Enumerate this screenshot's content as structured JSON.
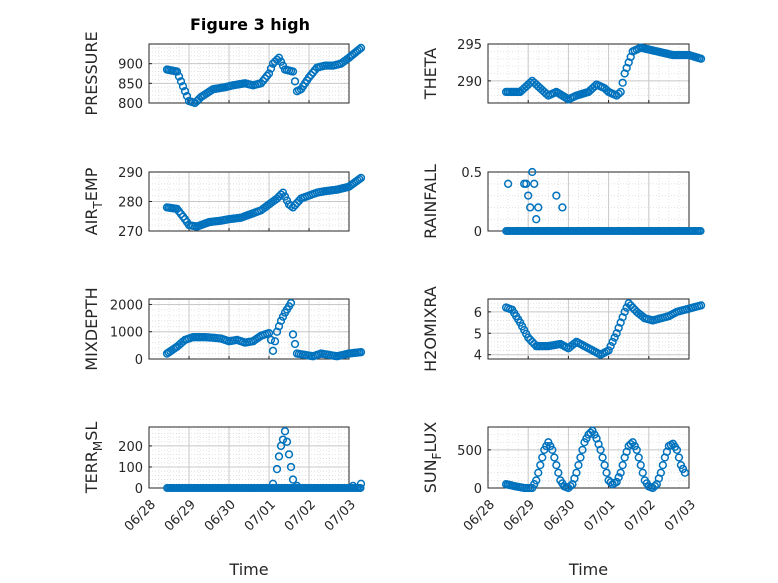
{
  "figure": {
    "title": "Figure 3 high"
  },
  "colors": {
    "marker": "#0072BD",
    "axis": "#262626",
    "grid": "#dcdcdc",
    "background": "#ffffff"
  },
  "chart_data": [
    {
      "type": "scatter",
      "id": "pressure",
      "ylabel": "PRESSURE",
      "ylabel_sub": "",
      "ylim": [
        800,
        950
      ],
      "yticks": [
        800,
        850,
        900
      ],
      "xticks": [
        "06/28",
        "06/29",
        "06/30",
        "07/01",
        "07/02",
        "07/03"
      ],
      "show_xticks": false,
      "xlabel": "",
      "x_start": 0.45,
      "x_end": 5.3,
      "points": [
        [
          0.45,
          885
        ],
        [
          0.7,
          880
        ],
        [
          0.9,
          830
        ],
        [
          1.0,
          805
        ],
        [
          1.15,
          800
        ],
        [
          1.3,
          815
        ],
        [
          1.6,
          835
        ],
        [
          1.9,
          840
        ],
        [
          2.1,
          845
        ],
        [
          2.4,
          850
        ],
        [
          2.6,
          845
        ],
        [
          2.8,
          850
        ],
        [
          3.0,
          875
        ],
        [
          3.1,
          900
        ],
        [
          3.25,
          915
        ],
        [
          3.4,
          885
        ],
        [
          3.6,
          880
        ],
        [
          3.7,
          830
        ],
        [
          3.8,
          835
        ],
        [
          4.0,
          865
        ],
        [
          4.2,
          890
        ],
        [
          4.4,
          895
        ],
        [
          4.6,
          895
        ],
        [
          4.8,
          900
        ],
        [
          5.0,
          915
        ],
        [
          5.3,
          940
        ]
      ]
    },
    {
      "type": "scatter",
      "id": "theta",
      "ylabel": "THETA",
      "ylabel_sub": "",
      "ylim": [
        287,
        295
      ],
      "yticks": [
        290,
        295
      ],
      "xticks": [
        "06/28",
        "06/29",
        "06/30",
        "07/01",
        "07/02",
        "07/03"
      ],
      "show_xticks": false,
      "xlabel": "",
      "x_start": 0.45,
      "x_end": 5.3,
      "points": [
        [
          0.45,
          288.5
        ],
        [
          0.8,
          288.5
        ],
        [
          1.0,
          289.5
        ],
        [
          1.1,
          290.0
        ],
        [
          1.3,
          289.0
        ],
        [
          1.5,
          288.0
        ],
        [
          1.7,
          288.5
        ],
        [
          2.0,
          287.5
        ],
        [
          2.2,
          288.0
        ],
        [
          2.5,
          288.5
        ],
        [
          2.7,
          289.5
        ],
        [
          2.9,
          289.0
        ],
        [
          3.0,
          288.5
        ],
        [
          3.2,
          288.0
        ],
        [
          3.3,
          288.5
        ],
        [
          3.4,
          291.0
        ],
        [
          3.6,
          294.0
        ],
        [
          3.8,
          294.5
        ],
        [
          4.2,
          294.0
        ],
        [
          4.6,
          293.5
        ],
        [
          5.0,
          293.5
        ],
        [
          5.3,
          293.0
        ]
      ]
    },
    {
      "type": "scatter",
      "id": "air_temp",
      "ylabel": "AIR",
      "ylabel_sub": "T",
      "ylabel_rest": "EMP",
      "ylim": [
        270,
        290
      ],
      "yticks": [
        270,
        280,
        290
      ],
      "xticks": [
        "06/28",
        "06/29",
        "06/30",
        "07/01",
        "07/02",
        "07/03"
      ],
      "show_xticks": false,
      "xlabel": "",
      "x_start": 0.45,
      "x_end": 5.3,
      "points": [
        [
          0.45,
          278
        ],
        [
          0.7,
          277.5
        ],
        [
          0.9,
          274
        ],
        [
          1.0,
          272
        ],
        [
          1.2,
          271.5
        ],
        [
          1.5,
          273
        ],
        [
          1.8,
          273.5
        ],
        [
          2.0,
          274
        ],
        [
          2.3,
          274.5
        ],
        [
          2.6,
          276
        ],
        [
          2.8,
          277
        ],
        [
          3.0,
          279
        ],
        [
          3.2,
          281
        ],
        [
          3.35,
          283
        ],
        [
          3.5,
          279
        ],
        [
          3.6,
          278
        ],
        [
          3.8,
          281
        ],
        [
          4.0,
          282
        ],
        [
          4.2,
          283
        ],
        [
          4.4,
          283.5
        ],
        [
          4.7,
          284
        ],
        [
          5.0,
          285
        ],
        [
          5.3,
          288
        ]
      ]
    },
    {
      "type": "scatter",
      "id": "rainfall",
      "ylabel": "RAINFALL",
      "ylabel_sub": "",
      "ylim": [
        0,
        0.5
      ],
      "yticks": [
        0,
        0.5
      ],
      "xticks": [
        "06/28",
        "06/29",
        "06/30",
        "07/01",
        "07/02",
        "07/03"
      ],
      "show_xticks": false,
      "xlabel": "",
      "x_start": 0.45,
      "x_end": 5.3,
      "baseline_value": 0,
      "points": [
        [
          0.5,
          0.4
        ],
        [
          0.9,
          0.4
        ],
        [
          0.95,
          0.4
        ],
        [
          1.0,
          0.3
        ],
        [
          1.05,
          0.2
        ],
        [
          1.1,
          0.5
        ],
        [
          1.15,
          0.4
        ],
        [
          1.2,
          0.1
        ],
        [
          1.25,
          0.2
        ],
        [
          1.7,
          0.3
        ],
        [
          1.85,
          0.2
        ]
      ]
    },
    {
      "type": "scatter",
      "id": "mixdepth",
      "ylabel": "MIXDEPTH",
      "ylabel_sub": "",
      "ylim": [
        0,
        2200
      ],
      "yticks": [
        0,
        1000,
        2000
      ],
      "xticks": [
        "06/28",
        "06/29",
        "06/30",
        "07/01",
        "07/02",
        "07/03"
      ],
      "show_xticks": false,
      "xlabel": "",
      "x_start": 0.45,
      "x_end": 5.3,
      "points": [
        [
          0.45,
          200
        ],
        [
          0.7,
          450
        ],
        [
          0.9,
          700
        ],
        [
          1.1,
          800
        ],
        [
          1.4,
          800
        ],
        [
          1.6,
          780
        ],
        [
          1.8,
          750
        ],
        [
          2.0,
          650
        ],
        [
          2.2,
          700
        ],
        [
          2.4,
          600
        ],
        [
          2.6,
          650
        ],
        [
          2.8,
          850
        ],
        [
          3.0,
          950
        ],
        [
          3.05,
          700
        ],
        [
          3.1,
          300
        ],
        [
          3.2,
          1000
        ],
        [
          3.3,
          1400
        ],
        [
          3.4,
          1700
        ],
        [
          3.55,
          2050
        ],
        [
          3.6,
          900
        ],
        [
          3.7,
          200
        ],
        [
          3.9,
          150
        ],
        [
          4.1,
          100
        ],
        [
          4.3,
          200
        ],
        [
          4.5,
          150
        ],
        [
          4.7,
          100
        ],
        [
          5.0,
          200
        ],
        [
          5.3,
          250
        ]
      ]
    },
    {
      "type": "scatter",
      "id": "h2omixra",
      "ylabel": "H2OMIXRA",
      "ylabel_sub": "",
      "ylim": [
        3.8,
        6.6
      ],
      "yticks": [
        4,
        5,
        6
      ],
      "xticks": [
        "06/28",
        "06/29",
        "06/30",
        "07/01",
        "07/02",
        "07/03"
      ],
      "show_xticks": false,
      "xlabel": "",
      "x_start": 0.45,
      "x_end": 5.3,
      "points": [
        [
          0.45,
          6.2
        ],
        [
          0.6,
          6.1
        ],
        [
          0.8,
          5.5
        ],
        [
          1.0,
          4.8
        ],
        [
          1.2,
          4.4
        ],
        [
          1.5,
          4.4
        ],
        [
          1.8,
          4.5
        ],
        [
          2.0,
          4.3
        ],
        [
          2.2,
          4.6
        ],
        [
          2.4,
          4.4
        ],
        [
          2.6,
          4.2
        ],
        [
          2.8,
          4.0
        ],
        [
          3.0,
          4.2
        ],
        [
          3.2,
          5.0
        ],
        [
          3.4,
          6.0
        ],
        [
          3.5,
          6.4
        ],
        [
          3.7,
          6.0
        ],
        [
          3.9,
          5.7
        ],
        [
          4.1,
          5.6
        ],
        [
          4.3,
          5.7
        ],
        [
          4.5,
          5.8
        ],
        [
          4.7,
          6.0
        ],
        [
          4.9,
          6.1
        ],
        [
          5.1,
          6.2
        ],
        [
          5.3,
          6.3
        ]
      ]
    },
    {
      "type": "scatter",
      "id": "terr_msl",
      "ylabel": "TERR",
      "ylabel_sub": "M",
      "ylabel_rest": "SL",
      "ylim": [
        0,
        290
      ],
      "yticks": [
        0,
        100,
        200
      ],
      "xticks": [
        "06/28",
        "06/29",
        "06/30",
        "07/01",
        "07/02",
        "07/03"
      ],
      "show_xticks": true,
      "xlabel": "Time",
      "x_start": 0.45,
      "x_end": 5.3,
      "baseline_value": 0,
      "points": [
        [
          3.1,
          20
        ],
        [
          3.2,
          90
        ],
        [
          3.25,
          150
        ],
        [
          3.3,
          200
        ],
        [
          3.35,
          230
        ],
        [
          3.4,
          270
        ],
        [
          3.45,
          220
        ],
        [
          3.5,
          160
        ],
        [
          3.55,
          100
        ],
        [
          3.6,
          40
        ],
        [
          3.7,
          10
        ],
        [
          5.1,
          10
        ],
        [
          5.3,
          20
        ]
      ]
    },
    {
      "type": "scatter",
      "id": "sun_flux",
      "ylabel": "SUN",
      "ylabel_sub": "F",
      "ylabel_rest": "LUX",
      "ylim": [
        0,
        800
      ],
      "yticks": [
        0,
        500
      ],
      "xticks": [
        "06/28",
        "06/29",
        "06/30",
        "07/01",
        "07/02",
        "07/03"
      ],
      "show_xticks": true,
      "xlabel": "Time",
      "x_start": 0.45,
      "x_end": 5.3,
      "points": [
        [
          0.45,
          50
        ],
        [
          0.7,
          20
        ],
        [
          0.9,
          0
        ],
        [
          1.1,
          0
        ],
        [
          1.2,
          100
        ],
        [
          1.3,
          300
        ],
        [
          1.4,
          500
        ],
        [
          1.5,
          600
        ],
        [
          1.6,
          500
        ],
        [
          1.7,
          300
        ],
        [
          1.8,
          100
        ],
        [
          1.9,
          20
        ],
        [
          2.0,
          0
        ],
        [
          2.1,
          50
        ],
        [
          2.2,
          200
        ],
        [
          2.3,
          400
        ],
        [
          2.4,
          600
        ],
        [
          2.5,
          700
        ],
        [
          2.6,
          750
        ],
        [
          2.7,
          650
        ],
        [
          2.8,
          500
        ],
        [
          2.9,
          300
        ],
        [
          3.0,
          100
        ],
        [
          3.1,
          50
        ],
        [
          3.2,
          80
        ],
        [
          3.3,
          200
        ],
        [
          3.4,
          400
        ],
        [
          3.5,
          550
        ],
        [
          3.6,
          600
        ],
        [
          3.7,
          500
        ],
        [
          3.8,
          300
        ],
        [
          3.9,
          100
        ],
        [
          4.0,
          20
        ],
        [
          4.1,
          0
        ],
        [
          4.2,
          50
        ],
        [
          4.3,
          200
        ],
        [
          4.4,
          400
        ],
        [
          4.5,
          550
        ],
        [
          4.6,
          580
        ],
        [
          4.7,
          500
        ],
        [
          4.8,
          300
        ],
        [
          4.9,
          200
        ]
      ]
    }
  ]
}
